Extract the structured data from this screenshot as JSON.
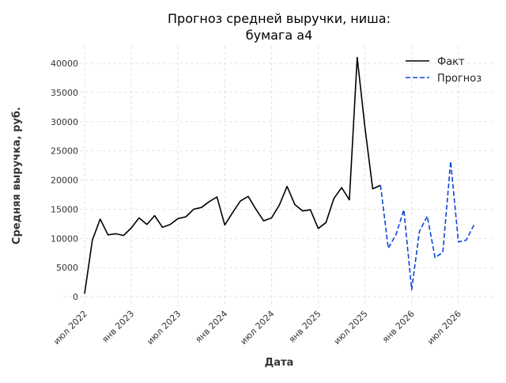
{
  "chart_data": {
    "type": "line",
    "title": "Прогноз средней выручки, ниша:\nбумага а4",
    "title_lines": [
      "Прогноз средней выручки, ниша:",
      "бумага а4"
    ],
    "xlabel": "Дата",
    "ylabel": "Средняя выручка, руб.",
    "ylim": [
      0,
      40000
    ],
    "yticks": [
      0,
      5000,
      10000,
      15000,
      20000,
      25000,
      30000,
      35000,
      40000
    ],
    "xticks": [
      {
        "label": "июл 2022",
        "month": 0
      },
      {
        "label": "янв 2023",
        "month": 6
      },
      {
        "label": "июл 2023",
        "month": 12
      },
      {
        "label": "янв 2024",
        "month": 18
      },
      {
        "label": "июл 2024",
        "month": 24
      },
      {
        "label": "янв 2025",
        "month": 30
      },
      {
        "label": "июл 2025",
        "month": 36
      },
      {
        "label": "янв 2026",
        "month": 42
      },
      {
        "label": "июл 2026",
        "month": 48
      }
    ],
    "grid": true,
    "legend_position": "top-right",
    "series": [
      {
        "name": "Факт",
        "color": "#000000",
        "style": "solid",
        "start_month": "2022-07",
        "values": [
          500,
          9700,
          13300,
          10600,
          10800,
          10500,
          11800,
          13500,
          12400,
          13900,
          11900,
          12400,
          13400,
          13700,
          15000,
          15300,
          16300,
          17100,
          12300,
          14400,
          16400,
          17200,
          15000,
          13000,
          13500,
          15700,
          18900,
          15800,
          14700,
          14900,
          11700,
          12700,
          16800,
          18700,
          16600,
          41000,
          29000,
          18500,
          19100
        ]
      },
      {
        "name": "Прогноз",
        "color": "#0b45d8",
        "style": "dashed",
        "start_month": "2025-09",
        "values": [
          19100,
          8300,
          10700,
          14900,
          1200,
          11200,
          13800,
          6700,
          7600,
          23200,
          9400,
          9700,
          12300
        ]
      }
    ]
  }
}
